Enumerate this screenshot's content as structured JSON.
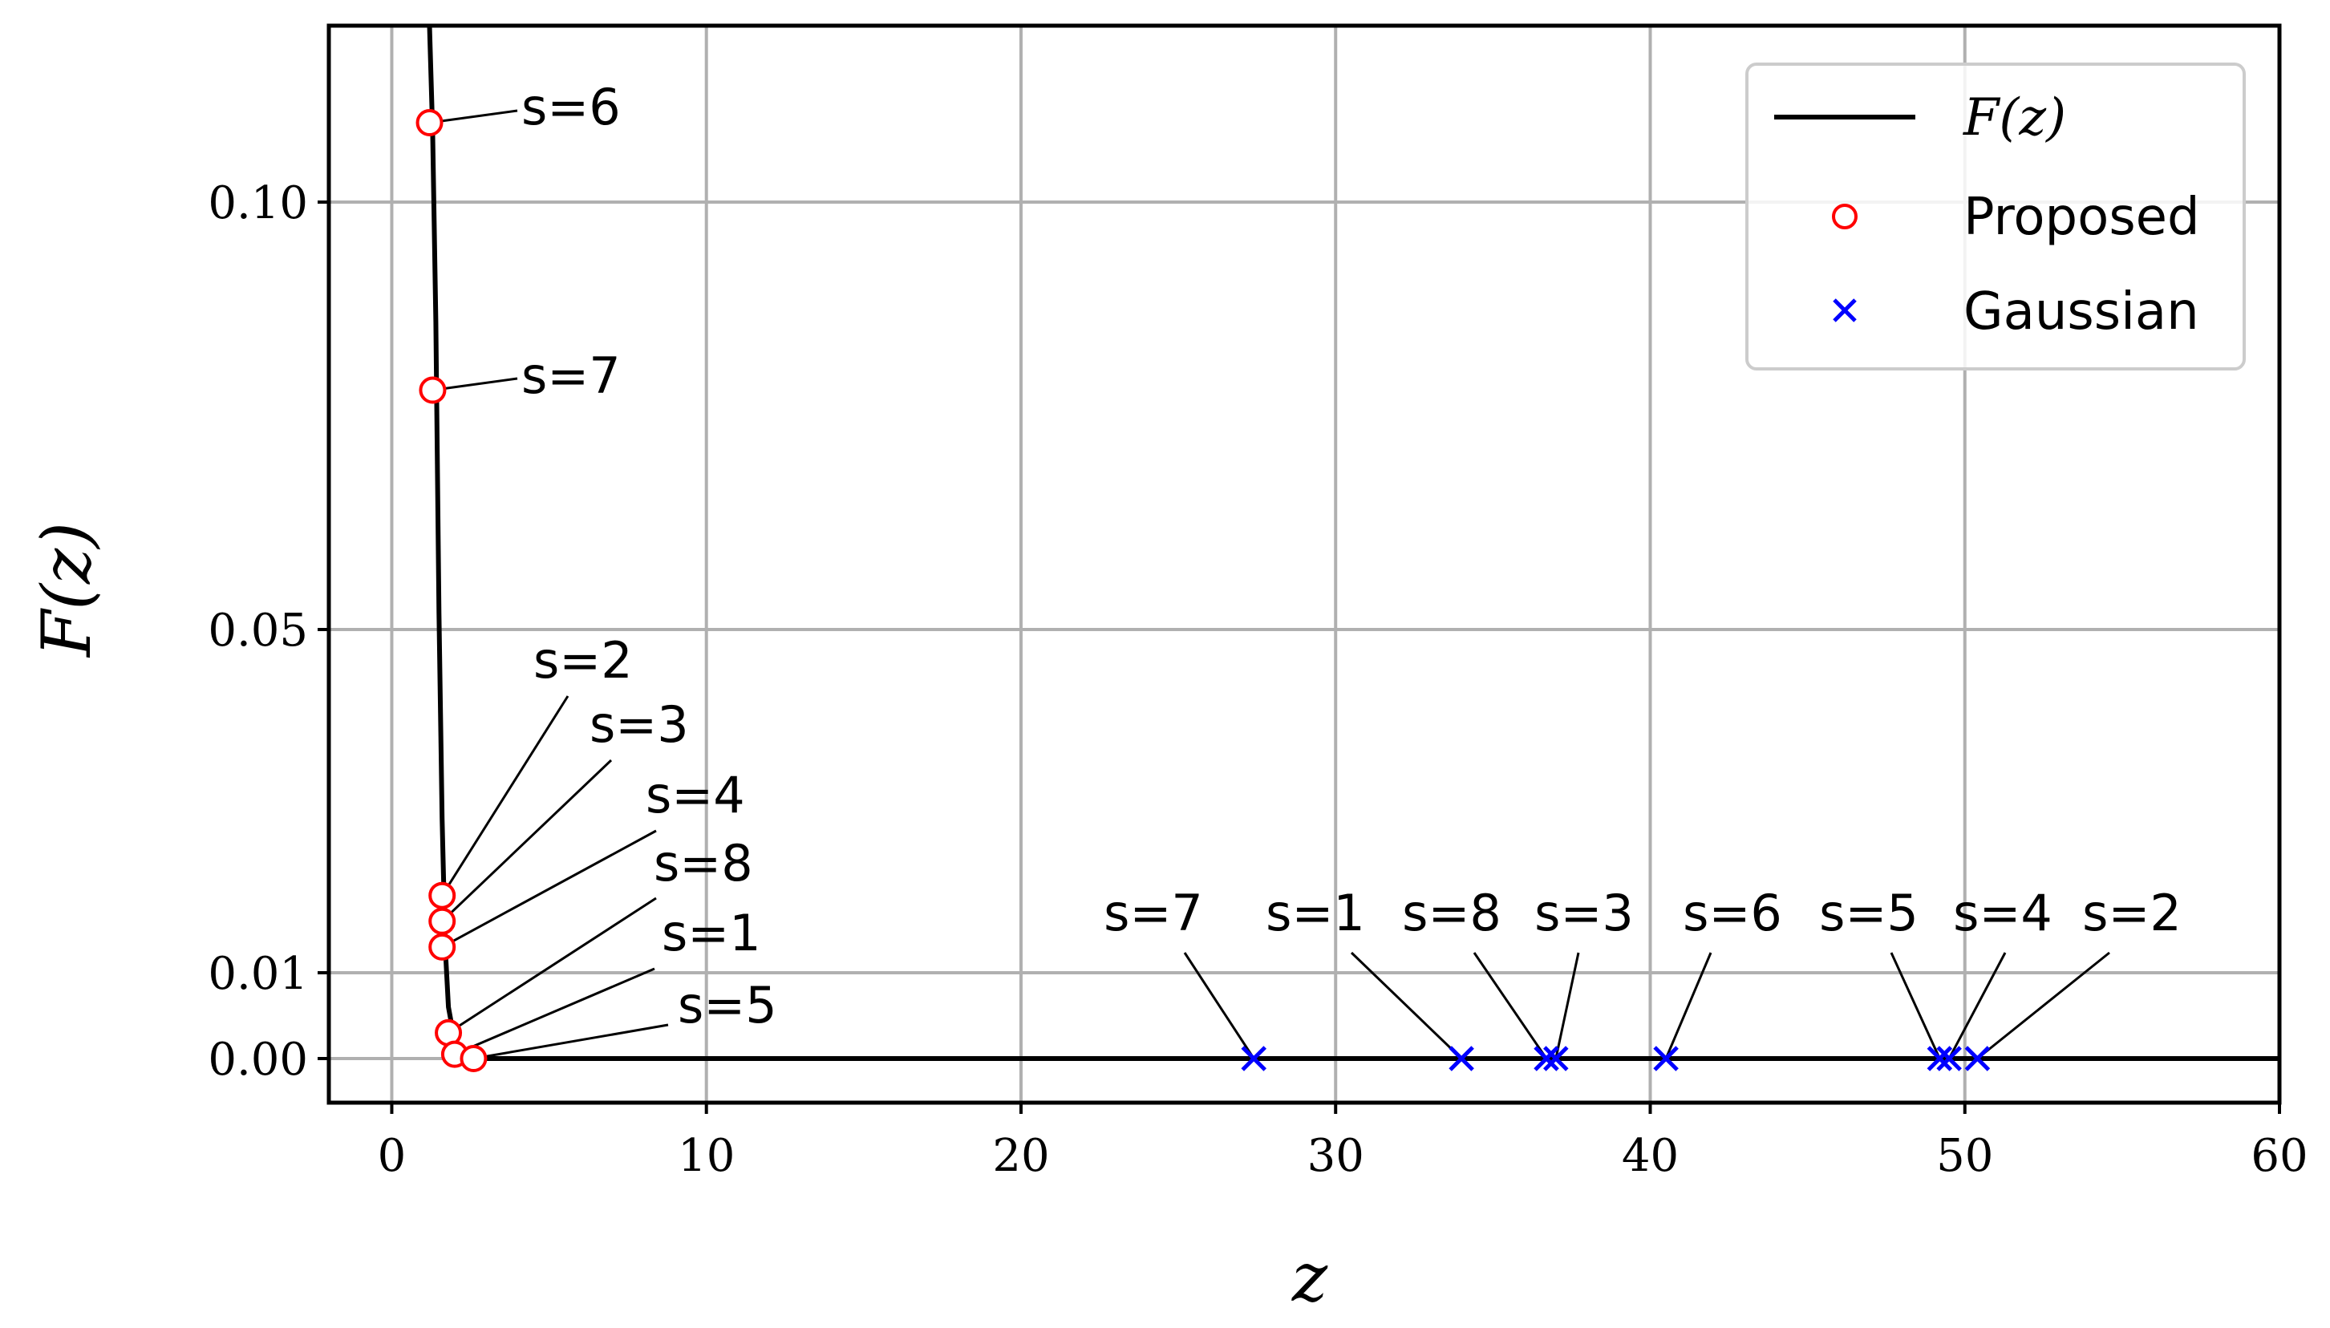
{
  "chart_data": {
    "type": "line",
    "xlabel": "z",
    "ylabel": "F(z)",
    "xlim": [
      -2,
      60
    ],
    "ylim": [
      -0.005,
      0.12
    ],
    "xticks": [
      0,
      10,
      20,
      30,
      40,
      50,
      60
    ],
    "xtick_labels": [
      "0",
      "10",
      "20",
      "30",
      "40",
      "50",
      "60"
    ],
    "yticks": [
      0.0,
      0.01,
      0.05,
      0.1
    ],
    "ytick_labels": [
      "0.00",
      "0.01",
      "0.05",
      "0.10"
    ],
    "grid": true,
    "legend_position": "top-right",
    "legend": {
      "curve_label": "F(z)",
      "proposed_label": "Proposed",
      "gaussian_label": "Gaussian"
    },
    "colors": {
      "curve": "#000000",
      "proposed": "#ff0000",
      "gaussian": "#0000ff",
      "grid": "#b0b0b0"
    },
    "curve": {
      "name": "F(z)",
      "x": [
        1.2,
        1.3,
        1.4,
        1.5,
        1.6,
        1.7,
        1.8,
        2.0,
        2.2,
        2.5,
        3,
        60
      ],
      "y": [
        0.12,
        0.108,
        0.086,
        0.052,
        0.028,
        0.013,
        0.006,
        0.002,
        0.0008,
        0.0002,
        0.0,
        0.0
      ]
    },
    "proposed": {
      "name": "Proposed",
      "points": [
        {
          "s": "s=6",
          "x": 1.2,
          "y": 0.109
        },
        {
          "s": "s=7",
          "x": 1.3,
          "y": 0.078
        },
        {
          "s": "s=2",
          "x": 1.6,
          "y": 0.019
        },
        {
          "s": "s=3",
          "x": 1.6,
          "y": 0.016
        },
        {
          "s": "s=4",
          "x": 1.6,
          "y": 0.013
        },
        {
          "s": "s=8",
          "x": 1.8,
          "y": 0.003
        },
        {
          "s": "s=1",
          "x": 2.0,
          "y": 0.0005
        },
        {
          "s": "s=5",
          "x": 2.6,
          "y": 0.0
        }
      ]
    },
    "gaussian": {
      "name": "Gaussian",
      "points": [
        {
          "s": "s=7",
          "x": 27.4,
          "y": 0.0
        },
        {
          "s": "s=1",
          "x": 34.0,
          "y": 0.0
        },
        {
          "s": "s=8",
          "x": 36.7,
          "y": 0.0
        },
        {
          "s": "s=3",
          "x": 37.0,
          "y": 0.0
        },
        {
          "s": "s=6",
          "x": 40.5,
          "y": 0.0
        },
        {
          "s": "s=5",
          "x": 49.2,
          "y": 0.0
        },
        {
          "s": "s=4",
          "x": 49.5,
          "y": 0.0
        },
        {
          "s": "s=2",
          "x": 50.4,
          "y": 0.0
        }
      ]
    }
  }
}
